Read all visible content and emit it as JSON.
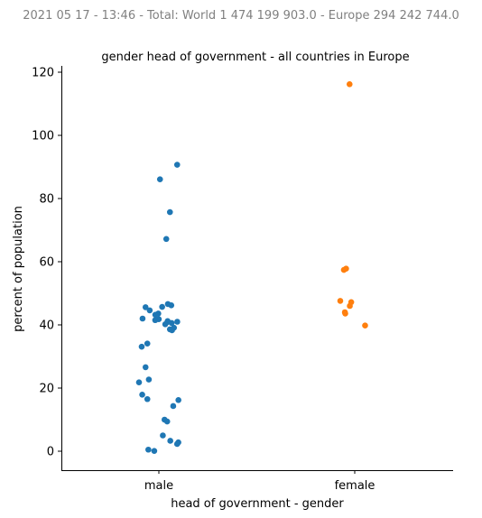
{
  "header": {
    "suptitle": "2021 05 17 - 13:46 - Total: World 1 474 199 903.0 - Europe 294 242 744.0"
  },
  "chart_data": {
    "type": "scatter",
    "subtype": "strip",
    "title": "gender head of government - all countries in Europe",
    "xlabel": "head of government - gender",
    "ylabel": "percent of population",
    "categories": [
      "male",
      "female"
    ],
    "ylim": [
      -6,
      122
    ],
    "yticks": [
      0,
      20,
      40,
      60,
      80,
      100,
      120
    ],
    "grid": false,
    "legend": "none",
    "series": [
      {
        "category": "male",
        "color": "#1f77b4",
        "values": [
          90.7,
          86.1,
          75.7,
          67.2,
          46.6,
          46.2,
          45.7,
          45.6,
          44.6,
          43.6,
          43.2,
          42.0,
          41.8,
          41.5,
          41.2,
          41.0,
          40.9,
          40.6,
          40.2,
          39.1,
          38.6,
          38.3,
          34.1,
          33.1,
          26.6,
          22.7,
          21.8,
          17.9,
          16.5,
          16.2,
          14.3,
          10.0,
          9.4,
          5.0,
          3.3,
          2.8,
          2.3,
          0.5,
          0.1
        ]
      },
      {
        "category": "female",
        "color": "#ff7f0e",
        "values": [
          116.2,
          57.8,
          57.4,
          47.6,
          47.2,
          46.0,
          44.0,
          43.6,
          39.8
        ]
      }
    ]
  }
}
